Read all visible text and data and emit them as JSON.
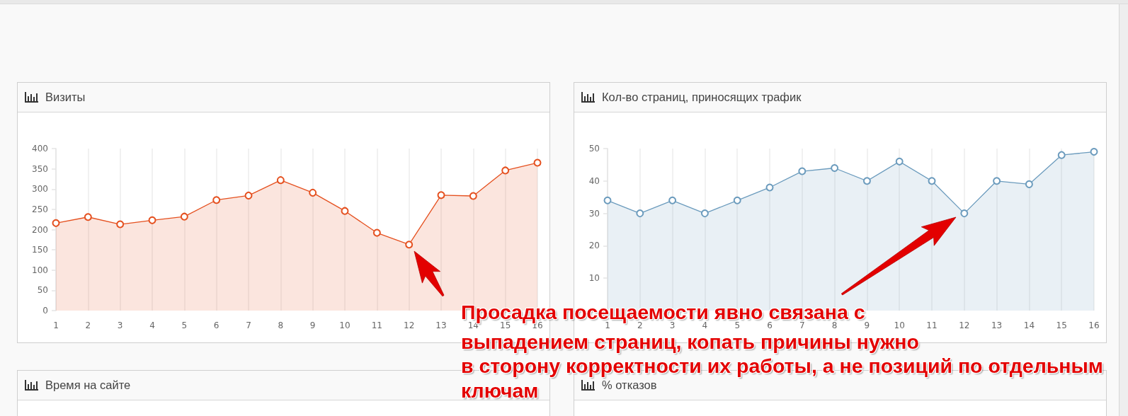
{
  "chart_data": [
    {
      "type": "area",
      "title": "Визиты",
      "x": [
        1,
        2,
        3,
        4,
        5,
        6,
        7,
        8,
        9,
        10,
        11,
        12,
        13,
        14,
        15,
        16
      ],
      "values": [
        216,
        231,
        213,
        223,
        232,
        273,
        284,
        322,
        291,
        246,
        192,
        163,
        285,
        283,
        346,
        365
      ],
      "color": "#e5501f",
      "xlim": [
        1,
        16
      ],
      "xticks": [
        1,
        2,
        3,
        4,
        5,
        6,
        7,
        8,
        9,
        10,
        11,
        12,
        13,
        14,
        15,
        16
      ],
      "ylim": [
        0,
        400
      ],
      "yticks": [
        0,
        50,
        100,
        150,
        200,
        250,
        300,
        350,
        400
      ],
      "grid": "x",
      "marker": "circle"
    },
    {
      "type": "area",
      "title": "Кол-во страниц, приносящих трафик",
      "x": [
        1,
        2,
        3,
        4,
        5,
        6,
        7,
        8,
        9,
        10,
        11,
        12,
        13,
        14,
        15,
        16
      ],
      "values": [
        34,
        30,
        34,
        30,
        34,
        38,
        43,
        44,
        40,
        46,
        40,
        30,
        40,
        39,
        48,
        49
      ],
      "color": "#6b9bbd",
      "xlim": [
        1,
        16
      ],
      "xticks": [
        1,
        2,
        3,
        4,
        5,
        6,
        7,
        8,
        9,
        10,
        11,
        12,
        13,
        14,
        15,
        16
      ],
      "ylim": [
        0,
        50
      ],
      "yticks": [
        10,
        20,
        30,
        40,
        50
      ],
      "grid": "x",
      "marker": "circle",
      "annotations": [
        "Просадка посещаемости явно связана с",
        "выпадением страниц, копать причины нужно",
        "в сторону корректности их работы, а не позиций по отдельным",
        "ключам"
      ]
    },
    {
      "type": "other",
      "title": "Время на сайте"
    },
    {
      "type": "other",
      "title": "% отказов"
    }
  ]
}
